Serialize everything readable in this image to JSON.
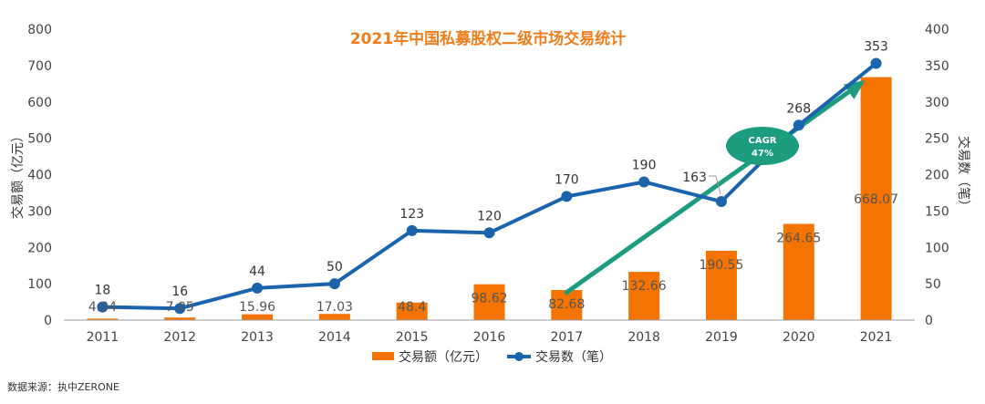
{
  "title": "2021年中国私募股权二级市场交易统计",
  "left_axis_label": "交易额（亿元）",
  "right_axis_label": "交易数（笔）",
  "legend": {
    "amount_label": "交易额（亿元）",
    "count_label": "交易数（笔）"
  },
  "cagr": {
    "line1": "CAGR",
    "line2": "47%"
  },
  "source_text": "数据来源：执中ZERONE",
  "colors": {
    "bar": "#f57300",
    "line": "#1a64ad",
    "title": "#ef7d1a",
    "arrow": "#1d9c80",
    "cagr_badge": "#1d9c80",
    "axis": "#999999"
  },
  "chart_data": {
    "type": "bar+line",
    "title": "2021年中国私募股权二级市场交易统计",
    "categories": [
      "2011",
      "2012",
      "2013",
      "2014",
      "2015",
      "2016",
      "2017",
      "2018",
      "2019",
      "2020",
      "2021"
    ],
    "series": [
      {
        "name": "交易额（亿元）",
        "type": "bar",
        "axis": "left",
        "values": [
          4.04,
          7.05,
          15.96,
          17.03,
          48.4,
          98.62,
          82.68,
          132.66,
          190.55,
          264.65,
          668.07
        ],
        "labels": [
          "4.04",
          "7.05",
          "15.96",
          "17.03",
          "48.4",
          "98.62",
          "82.68",
          "132.66",
          "190.55",
          "264.65",
          "668.07"
        ]
      },
      {
        "name": "交易数（笔）",
        "type": "line",
        "axis": "right",
        "values": [
          18,
          16,
          44,
          50,
          123,
          120,
          170,
          190,
          163,
          268,
          353
        ],
        "labels": [
          "18",
          "16",
          "44",
          "50",
          "123",
          "120",
          "170",
          "190",
          "163",
          "268",
          "353"
        ]
      }
    ],
    "ylim_left": [
      0,
      800
    ],
    "yticks_left": [
      0,
      100,
      200,
      300,
      400,
      500,
      600,
      700,
      800
    ],
    "ylim_right": [
      0,
      400
    ],
    "yticks_right": [
      0,
      50,
      100,
      150,
      200,
      250,
      300,
      350,
      400
    ],
    "ylabel_left": "交易额（亿元）",
    "ylabel_right": "交易数（笔）",
    "legend_position": "bottom",
    "grid": false
  }
}
